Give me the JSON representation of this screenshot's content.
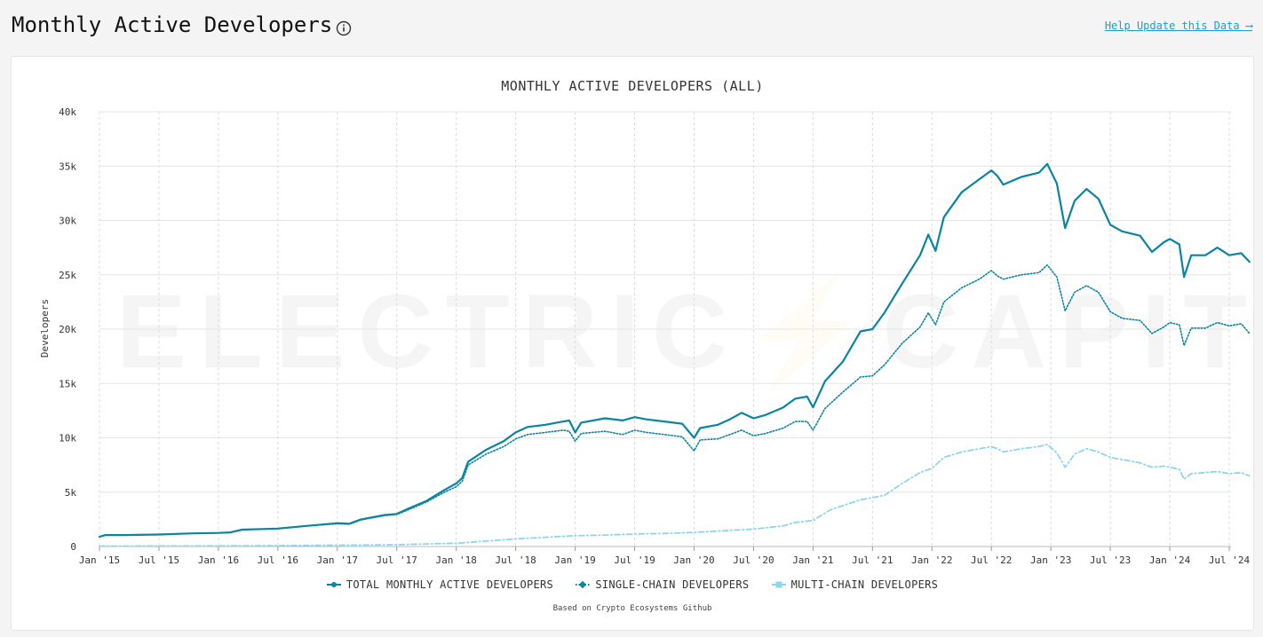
{
  "header": {
    "title": "Monthly Active Developers",
    "help_link": "Help Update this Data ⟶"
  },
  "watermark": "ELECTRIC⚡CAPITAL",
  "source_note": "Based on Crypto Ecosystems Github",
  "colors": {
    "total": "#0a84a0",
    "single": "#0a84a0",
    "multi": "#8fd6ec"
  },
  "chart_data": {
    "type": "line",
    "title": "MONTHLY ACTIVE DEVELOPERS (ALL)",
    "ylabel": "Developers",
    "xlabel": "",
    "ylim": [
      0,
      40000
    ],
    "y_ticks": [
      {
        "value": 0,
        "label": "0"
      },
      {
        "value": 5000,
        "label": "5k"
      },
      {
        "value": 10000,
        "label": "10k"
      },
      {
        "value": 15000,
        "label": "15k"
      },
      {
        "value": 20000,
        "label": "20k"
      },
      {
        "value": 25000,
        "label": "25k"
      },
      {
        "value": 30000,
        "label": "30k"
      },
      {
        "value": 35000,
        "label": "35k"
      },
      {
        "value": 40000,
        "label": "40k"
      }
    ],
    "x_range": [
      2015.0,
      2024.5
    ],
    "x_ticks": [
      {
        "value": 2015.0,
        "label": "Jan '15"
      },
      {
        "value": 2015.5,
        "label": "Jul '15"
      },
      {
        "value": 2016.0,
        "label": "Jan '16"
      },
      {
        "value": 2016.5,
        "label": "Jul '16"
      },
      {
        "value": 2017.0,
        "label": "Jan '17"
      },
      {
        "value": 2017.5,
        "label": "Jul '17"
      },
      {
        "value": 2018.0,
        "label": "Jan '18"
      },
      {
        "value": 2018.5,
        "label": "Jul '18"
      },
      {
        "value": 2019.0,
        "label": "Jan '19"
      },
      {
        "value": 2019.5,
        "label": "Jul '19"
      },
      {
        "value": 2020.0,
        "label": "Jan '20"
      },
      {
        "value": 2020.5,
        "label": "Jul '20"
      },
      {
        "value": 2021.0,
        "label": "Jan '21"
      },
      {
        "value": 2021.5,
        "label": "Jul '21"
      },
      {
        "value": 2022.0,
        "label": "Jan '22"
      },
      {
        "value": 2022.5,
        "label": "Jul '22"
      },
      {
        "value": 2023.0,
        "label": "Jan '23"
      },
      {
        "value": 2023.5,
        "label": "Jul '23"
      },
      {
        "value": 2024.0,
        "label": "Jan '24"
      },
      {
        "value": 2024.5,
        "label": "Jul '24"
      }
    ],
    "series": [
      {
        "name": "TOTAL MONTHLY ACTIVE DEVELOPERS",
        "style": "solid",
        "points": [
          [
            2015.0,
            900
          ],
          [
            2015.05,
            1050
          ],
          [
            2015.2,
            1050
          ],
          [
            2015.5,
            1100
          ],
          [
            2015.75,
            1200
          ],
          [
            2016.0,
            1250
          ],
          [
            2016.1,
            1300
          ],
          [
            2016.2,
            1550
          ],
          [
            2016.5,
            1650
          ],
          [
            2016.75,
            1900
          ],
          [
            2016.95,
            2100
          ],
          [
            2017.0,
            2150
          ],
          [
            2017.1,
            2100
          ],
          [
            2017.2,
            2500
          ],
          [
            2017.4,
            2900
          ],
          [
            2017.5,
            3000
          ],
          [
            2017.6,
            3500
          ],
          [
            2017.75,
            4200
          ],
          [
            2017.9,
            5200
          ],
          [
            2018.0,
            5800
          ],
          [
            2018.05,
            6300
          ],
          [
            2018.1,
            7800
          ],
          [
            2018.25,
            8900
          ],
          [
            2018.4,
            9700
          ],
          [
            2018.5,
            10500
          ],
          [
            2018.6,
            11000
          ],
          [
            2018.75,
            11200
          ],
          [
            2018.9,
            11500
          ],
          [
            2018.95,
            11600
          ],
          [
            2019.0,
            10500
          ],
          [
            2019.05,
            11400
          ],
          [
            2019.25,
            11800
          ],
          [
            2019.4,
            11600
          ],
          [
            2019.5,
            11900
          ],
          [
            2019.6,
            11700
          ],
          [
            2019.75,
            11500
          ],
          [
            2019.9,
            11300
          ],
          [
            2020.0,
            10000
          ],
          [
            2020.05,
            10900
          ],
          [
            2020.2,
            11200
          ],
          [
            2020.3,
            11700
          ],
          [
            2020.4,
            12300
          ],
          [
            2020.5,
            11800
          ],
          [
            2020.6,
            12100
          ],
          [
            2020.75,
            12800
          ],
          [
            2020.85,
            13600
          ],
          [
            2020.95,
            13800
          ],
          [
            2021.0,
            12800
          ],
          [
            2021.1,
            15200
          ],
          [
            2021.25,
            17000
          ],
          [
            2021.4,
            19800
          ],
          [
            2021.5,
            20000
          ],
          [
            2021.6,
            21500
          ],
          [
            2021.75,
            24200
          ],
          [
            2021.9,
            26800
          ],
          [
            2021.97,
            28700
          ],
          [
            2022.03,
            27200
          ],
          [
            2022.1,
            30300
          ],
          [
            2022.25,
            32600
          ],
          [
            2022.4,
            33800
          ],
          [
            2022.5,
            34600
          ],
          [
            2022.55,
            34100
          ],
          [
            2022.6,
            33300
          ],
          [
            2022.75,
            34000
          ],
          [
            2022.9,
            34400
          ],
          [
            2022.97,
            35200
          ],
          [
            2023.05,
            33400
          ],
          [
            2023.12,
            29300
          ],
          [
            2023.2,
            31800
          ],
          [
            2023.3,
            32900
          ],
          [
            2023.4,
            32000
          ],
          [
            2023.5,
            29600
          ],
          [
            2023.6,
            29000
          ],
          [
            2023.75,
            28600
          ],
          [
            2023.85,
            27100
          ],
          [
            2023.95,
            28000
          ],
          [
            2024.0,
            28300
          ],
          [
            2024.08,
            27800
          ],
          [
            2024.12,
            24800
          ],
          [
            2024.18,
            26800
          ],
          [
            2024.3,
            26800
          ],
          [
            2024.4,
            27500
          ],
          [
            2024.5,
            26800
          ],
          [
            2024.6,
            27000
          ],
          [
            2024.67,
            26200
          ]
        ]
      },
      {
        "name": "SINGLE-CHAIN DEVELOPERS",
        "style": "dotted",
        "points": [
          [
            2015.0,
            900
          ],
          [
            2015.05,
            1050
          ],
          [
            2015.2,
            1050
          ],
          [
            2015.5,
            1100
          ],
          [
            2015.75,
            1200
          ],
          [
            2016.0,
            1250
          ],
          [
            2016.1,
            1300
          ],
          [
            2016.2,
            1550
          ],
          [
            2016.5,
            1650
          ],
          [
            2016.75,
            1900
          ],
          [
            2016.95,
            2050
          ],
          [
            2017.0,
            2100
          ],
          [
            2017.1,
            2050
          ],
          [
            2017.2,
            2450
          ],
          [
            2017.4,
            2850
          ],
          [
            2017.5,
            2950
          ],
          [
            2017.6,
            3400
          ],
          [
            2017.75,
            4100
          ],
          [
            2017.9,
            5000
          ],
          [
            2018.0,
            5500
          ],
          [
            2018.05,
            6000
          ],
          [
            2018.1,
            7500
          ],
          [
            2018.25,
            8500
          ],
          [
            2018.4,
            9200
          ],
          [
            2018.5,
            9900
          ],
          [
            2018.6,
            10300
          ],
          [
            2018.75,
            10500
          ],
          [
            2018.9,
            10700
          ],
          [
            2018.95,
            10600
          ],
          [
            2019.0,
            9700
          ],
          [
            2019.05,
            10400
          ],
          [
            2019.25,
            10600
          ],
          [
            2019.4,
            10300
          ],
          [
            2019.5,
            10700
          ],
          [
            2019.6,
            10500
          ],
          [
            2019.75,
            10300
          ],
          [
            2019.9,
            10100
          ],
          [
            2020.0,
            8800
          ],
          [
            2020.05,
            9800
          ],
          [
            2020.2,
            9900
          ],
          [
            2020.3,
            10300
          ],
          [
            2020.4,
            10700
          ],
          [
            2020.5,
            10200
          ],
          [
            2020.6,
            10400
          ],
          [
            2020.75,
            10900
          ],
          [
            2020.85,
            11500
          ],
          [
            2020.95,
            11500
          ],
          [
            2021.0,
            10700
          ],
          [
            2021.1,
            12700
          ],
          [
            2021.25,
            14200
          ],
          [
            2021.4,
            15600
          ],
          [
            2021.5,
            15700
          ],
          [
            2021.6,
            16700
          ],
          [
            2021.75,
            18700
          ],
          [
            2021.9,
            20200
          ],
          [
            2021.97,
            21500
          ],
          [
            2022.03,
            20400
          ],
          [
            2022.1,
            22500
          ],
          [
            2022.25,
            23800
          ],
          [
            2022.4,
            24600
          ],
          [
            2022.5,
            25400
          ],
          [
            2022.55,
            24900
          ],
          [
            2022.6,
            24600
          ],
          [
            2022.75,
            25000
          ],
          [
            2022.9,
            25200
          ],
          [
            2022.97,
            25900
          ],
          [
            2023.05,
            24800
          ],
          [
            2023.12,
            21700
          ],
          [
            2023.2,
            23400
          ],
          [
            2023.3,
            24000
          ],
          [
            2023.4,
            23400
          ],
          [
            2023.5,
            21600
          ],
          [
            2023.6,
            21000
          ],
          [
            2023.75,
            20800
          ],
          [
            2023.85,
            19600
          ],
          [
            2023.95,
            20200
          ],
          [
            2024.0,
            20600
          ],
          [
            2024.08,
            20400
          ],
          [
            2024.12,
            18500
          ],
          [
            2024.18,
            20100
          ],
          [
            2024.3,
            20100
          ],
          [
            2024.4,
            20600
          ],
          [
            2024.5,
            20300
          ],
          [
            2024.6,
            20500
          ],
          [
            2024.67,
            19600
          ]
        ]
      },
      {
        "name": "MULTI-CHAIN DEVELOPERS",
        "style": "dashdot",
        "points": [
          [
            2015.0,
            30
          ],
          [
            2015.5,
            50
          ],
          [
            2016.0,
            60
          ],
          [
            2016.5,
            80
          ],
          [
            2017.0,
            120
          ],
          [
            2017.5,
            160
          ],
          [
            2018.0,
            300
          ],
          [
            2018.25,
            500
          ],
          [
            2018.5,
            700
          ],
          [
            2018.75,
            850
          ],
          [
            2019.0,
            1000
          ],
          [
            2019.25,
            1050
          ],
          [
            2019.5,
            1150
          ],
          [
            2019.75,
            1200
          ],
          [
            2020.0,
            1300
          ],
          [
            2020.25,
            1450
          ],
          [
            2020.5,
            1600
          ],
          [
            2020.75,
            1900
          ],
          [
            2020.85,
            2200
          ],
          [
            2021.0,
            2400
          ],
          [
            2021.15,
            3400
          ],
          [
            2021.4,
            4300
          ],
          [
            2021.6,
            4700
          ],
          [
            2021.75,
            5800
          ],
          [
            2021.9,
            6800
          ],
          [
            2022.0,
            7200
          ],
          [
            2022.1,
            8200
          ],
          [
            2022.25,
            8700
          ],
          [
            2022.4,
            9000
          ],
          [
            2022.5,
            9200
          ],
          [
            2022.55,
            9000
          ],
          [
            2022.6,
            8700
          ],
          [
            2022.75,
            9000
          ],
          [
            2022.9,
            9200
          ],
          [
            2022.97,
            9400
          ],
          [
            2023.05,
            8600
          ],
          [
            2023.12,
            7300
          ],
          [
            2023.2,
            8500
          ],
          [
            2023.3,
            9000
          ],
          [
            2023.4,
            8700
          ],
          [
            2023.5,
            8200
          ],
          [
            2023.6,
            8000
          ],
          [
            2023.75,
            7700
          ],
          [
            2023.85,
            7300
          ],
          [
            2023.95,
            7400
          ],
          [
            2024.0,
            7300
          ],
          [
            2024.08,
            7100
          ],
          [
            2024.12,
            6200
          ],
          [
            2024.18,
            6700
          ],
          [
            2024.3,
            6800
          ],
          [
            2024.4,
            6900
          ],
          [
            2024.5,
            6700
          ],
          [
            2024.6,
            6800
          ],
          [
            2024.67,
            6500
          ]
        ]
      }
    ]
  }
}
